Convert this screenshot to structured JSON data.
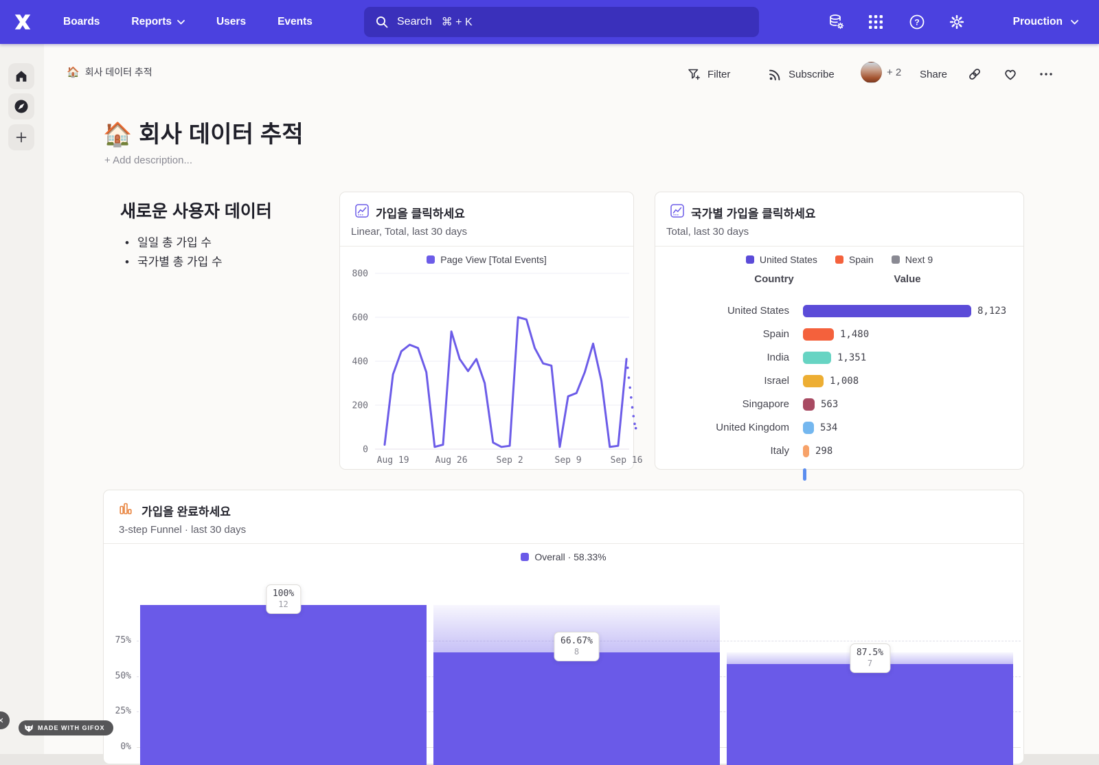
{
  "nav": {
    "items": [
      {
        "label": "Boards",
        "has_chevron": false
      },
      {
        "label": "Reports",
        "has_chevron": true
      },
      {
        "label": "Users",
        "has_chevron": false
      },
      {
        "label": "Events",
        "has_chevron": false
      }
    ],
    "search_label": "Search",
    "search_keys": "⌘ + K",
    "project_name": "Prouction",
    "bg_color": "#4B41DF"
  },
  "breadcrumb": {
    "emoji": "🏠",
    "label": "회사 데이터 추적"
  },
  "toolbar": {
    "filter": "Filter",
    "subscribe": "Subscribe",
    "avatar_extra": "+ 2",
    "share": "Share"
  },
  "page": {
    "emoji": "🏠",
    "title": "회사 데이터 추적",
    "add_description": "+ Add description..."
  },
  "section": {
    "heading": "새로운 사용자 데이터",
    "bullets": [
      "일일 총 가입 수",
      "국가별 총 가입 수"
    ]
  },
  "badge": {
    "label": "MADE WITH GIFOX"
  },
  "chart_data": [
    {
      "type": "line",
      "title": "가입을 클릭하세요",
      "subtitle": "Linear, Total, last 30 days",
      "legend": [
        "Page View [Total Events]"
      ],
      "line_color": "#6C5CE8",
      "ylim": [
        0,
        800
      ],
      "yticks": [
        0,
        200,
        400,
        600,
        800
      ],
      "x_ticks": [
        "Aug 19",
        "Aug 26",
        "Sep 2",
        "Sep 9",
        "Sep 16"
      ],
      "tick_indices": [
        1,
        8,
        15,
        22,
        29
      ],
      "values": [
        20,
        340,
        445,
        475,
        460,
        350,
        10,
        20,
        535,
        410,
        355,
        410,
        300,
        30,
        10,
        15,
        600,
        590,
        460,
        390,
        380,
        10,
        240,
        255,
        350,
        480,
        310,
        10,
        15,
        410
      ],
      "dotted_tail": [
        370,
        325,
        280,
        235,
        190,
        150,
        115,
        95
      ]
    },
    {
      "type": "bar",
      "title": "국가별 가입을 클릭하세요",
      "subtitle": "Total, last 30 days",
      "legend": [
        {
          "label": "United States",
          "color": "#5B4BD8"
        },
        {
          "label": "Spain",
          "color": "#F4613C"
        },
        {
          "label": "Next 9",
          "color": "#8A8A93"
        }
      ],
      "columns": [
        "Country",
        "Value"
      ],
      "rows": [
        {
          "country": "United States",
          "value": "8,123",
          "num": 8123,
          "color": "#5B4BD8"
        },
        {
          "country": "Spain",
          "value": "1,480",
          "num": 1480,
          "color": "#F4613C"
        },
        {
          "country": "India",
          "value": "1,351",
          "num": 1351,
          "color": "#67D4C3"
        },
        {
          "country": "Israel",
          "value": "1,008",
          "num": 1008,
          "color": "#EDAE33"
        },
        {
          "country": "Singapore",
          "value": "563",
          "num": 563,
          "color": "#A84A62"
        },
        {
          "country": "United Kingdom",
          "value": "534",
          "num": 534,
          "color": "#74B7EF"
        },
        {
          "country": "Italy",
          "value": "298",
          "num": 298,
          "color": "#F7A269"
        }
      ],
      "partial_row": {
        "color": "#5B8DEF"
      },
      "max": 8123
    },
    {
      "type": "funnel",
      "title": "가입을 완료하세요",
      "subtitle": "3-step Funnel · last 30 days",
      "legend": "Overall · 58.33%",
      "bar_color": "#6A5AE8",
      "yticks": [
        "75%",
        "50%",
        "25%",
        "0%"
      ],
      "steps": [
        {
          "pct": "100%",
          "count": "12",
          "overall": 100,
          "prev": 100
        },
        {
          "pct": "66.67%",
          "count": "8",
          "overall": 66.67,
          "prev": 100
        },
        {
          "pct": "87.5%",
          "count": "7",
          "overall": 58.33,
          "prev": 66.67
        }
      ]
    }
  ]
}
